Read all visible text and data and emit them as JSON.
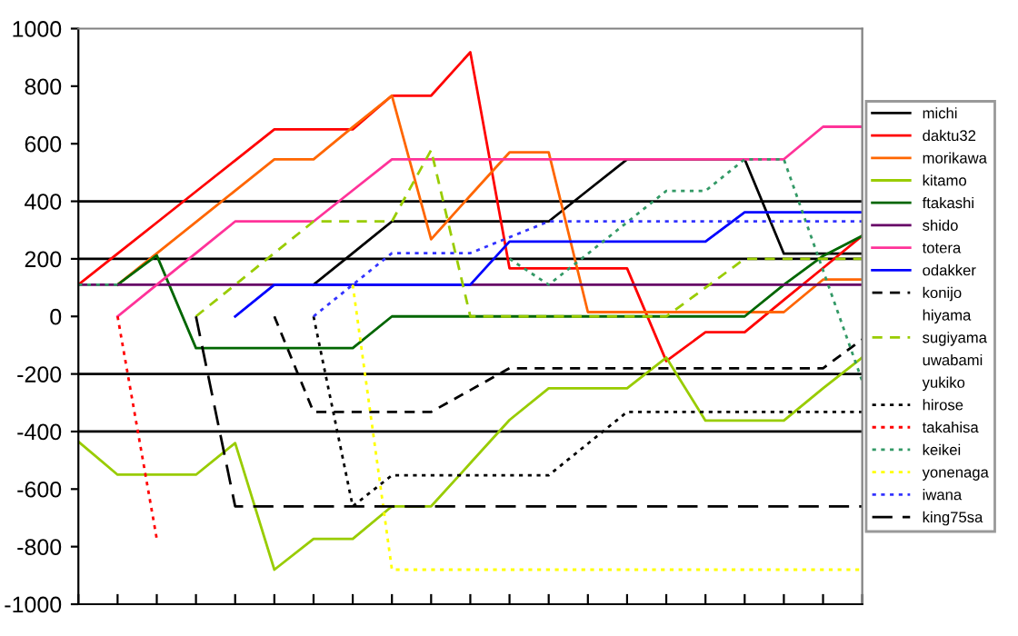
{
  "chart_data": {
    "type": "line",
    "categories": [
      null,
      null,
      null,
      null,
      null,
      null,
      null,
      null,
      null,
      null,
      null,
      null,
      null,
      null,
      null,
      null,
      null,
      null,
      null,
      null,
      null
    ],
    "ylim": [
      -1000,
      1000
    ],
    "yticks": [
      -1000,
      -800,
      -600,
      -400,
      -200,
      0,
      200,
      400,
      600,
      800,
      1000
    ],
    "grid": false,
    "legend": "right",
    "marker": "none",
    "ref_lines": [
      {
        "axis": "y",
        "value": 400,
        "color": "#000000"
      },
      {
        "axis": "y",
        "value": 200,
        "color": "#000000"
      },
      {
        "axis": "y",
        "value": -200,
        "color": "#000000"
      },
      {
        "axis": "y",
        "value": -400,
        "color": "#000000"
      }
    ],
    "series": [
      {
        "name": "michi",
        "color": "#000000",
        "line_style": "solid",
        "values": [
          null,
          null,
          null,
          null,
          null,
          null,
          110,
          220,
          330,
          330,
          330,
          330,
          330,
          438,
          546,
          546,
          546,
          546,
          218,
          218,
          218
        ]
      },
      {
        "name": "daktu32",
        "color": "#ff0000",
        "line_style": "solid",
        "values": [
          110,
          218,
          326,
          434,
          542,
          650,
          650,
          650,
          767,
          767,
          918,
          167,
          167,
          167,
          167,
          -155,
          -55,
          -55,
          57,
          168,
          280
        ]
      },
      {
        "name": "morikawa",
        "color": "#ff6600",
        "line_style": "solid",
        "values": [
          null,
          110,
          219,
          328,
          437,
          546,
          546,
          658,
          767,
          268,
          420,
          570,
          570,
          15,
          15,
          15,
          15,
          15,
          15,
          128,
          128
        ]
      },
      {
        "name": "kitamo",
        "color": "#99cc00",
        "line_style": "solid",
        "values": [
          -435,
          -550,
          -550,
          -550,
          -440,
          -880,
          -773,
          -773,
          -660,
          -660,
          -510,
          -360,
          -250,
          -250,
          -250,
          -143,
          -362,
          -362,
          -362,
          -250,
          -143
        ]
      },
      {
        "name": "ftakashi",
        "color": "#006600",
        "line_style": "solid",
        "values": [
          null,
          110,
          212,
          -110,
          -110,
          -110,
          -110,
          -110,
          0,
          0,
          0,
          0,
          0,
          0,
          0,
          0,
          0,
          0,
          110,
          210,
          280
        ]
      },
      {
        "name": "shido",
        "color": "#660066",
        "line_style": "solid",
        "values": [
          110,
          110,
          110,
          110,
          110,
          110,
          110,
          110,
          110,
          110,
          110,
          110,
          110,
          110,
          110,
          110,
          110,
          110,
          110,
          110,
          110
        ]
      },
      {
        "name": "totera",
        "color": "#ff3399",
        "line_style": "solid",
        "values": [
          null,
          0,
          110,
          220,
          330,
          330,
          330,
          438,
          546,
          546,
          546,
          546,
          546,
          546,
          546,
          546,
          546,
          546,
          546,
          659,
          659
        ]
      },
      {
        "name": "odakker",
        "color": "#0000ff",
        "line_style": "solid",
        "values": [
          null,
          null,
          null,
          null,
          0,
          110,
          110,
          110,
          110,
          110,
          110,
          260,
          260,
          260,
          260,
          260,
          260,
          362,
          362,
          362,
          362
        ]
      },
      {
        "name": "konijo",
        "color": "#000000",
        "line_style": "dashed",
        "values": [
          null,
          null,
          null,
          null,
          null,
          0,
          -332,
          -332,
          -332,
          -332,
          -256,
          -180,
          -180,
          -180,
          -180,
          -180,
          -180,
          -180,
          -180,
          -180,
          -80
        ]
      },
      {
        "name": "hiyama",
        "line_style": "solid",
        "values": [
          null,
          null,
          null,
          null,
          null,
          null,
          null,
          null,
          null,
          null,
          null,
          null,
          null,
          null,
          null,
          null,
          null,
          null,
          null,
          null,
          null
        ]
      },
      {
        "name": "sugiyama",
        "color": "#99cc00",
        "line_style": "dashed",
        "values": [
          null,
          null,
          null,
          0,
          110,
          220,
          330,
          330,
          330,
          578,
          0,
          0,
          0,
          0,
          0,
          0,
          100,
          200,
          200,
          200,
          200
        ]
      },
      {
        "name": "uwabami",
        "line_style": "solid",
        "values": [
          null,
          null,
          null,
          null,
          null,
          null,
          null,
          null,
          null,
          null,
          null,
          null,
          null,
          null,
          null,
          null,
          null,
          null,
          null,
          null,
          null
        ]
      },
      {
        "name": "yukiko",
        "line_style": "solid",
        "values": [
          null,
          null,
          null,
          null,
          null,
          null,
          null,
          null,
          null,
          null,
          null,
          null,
          null,
          null,
          null,
          null,
          null,
          null,
          null,
          null,
          null
        ]
      },
      {
        "name": "hirose",
        "color": "#000000",
        "line_style": "dotted",
        "values": [
          null,
          null,
          null,
          null,
          null,
          null,
          0,
          -660,
          -552,
          -552,
          -552,
          -552,
          -552,
          -442,
          -332,
          -332,
          -332,
          -332,
          -332,
          -332,
          -332
        ]
      },
      {
        "name": "takahisa",
        "color": "#ff0000",
        "line_style": "dotted",
        "values": [
          null,
          0,
          -773,
          null,
          null,
          null,
          null,
          null,
          null,
          null,
          null,
          null,
          null,
          null,
          null,
          null,
          null,
          null,
          null,
          null,
          null
        ]
      },
      {
        "name": "keikei",
        "color": "#339966",
        "line_style": "dotted",
        "values": [
          110,
          110,
          null,
          null,
          null,
          null,
          null,
          null,
          null,
          null,
          null,
          200,
          110,
          218,
          327,
          436,
          436,
          546,
          546,
          160,
          -225
        ]
      },
      {
        "name": "yonenaga",
        "color": "#ffff00",
        "line_style": "dotted",
        "values": [
          null,
          null,
          null,
          null,
          null,
          null,
          null,
          110,
          -880,
          -880,
          -880,
          -880,
          -880,
          -880,
          -880,
          -880,
          -880,
          -880,
          -880,
          -880,
          -880
        ]
      },
      {
        "name": "iwana",
        "color": "#3333ff",
        "line_style": "dotted",
        "values": [
          null,
          null,
          null,
          null,
          null,
          null,
          0,
          110,
          220,
          220,
          220,
          275,
          330,
          330,
          330,
          330,
          330,
          330,
          330,
          330,
          330
        ]
      },
      {
        "name": "king75sa",
        "color": "#000000",
        "line_style": "long_dash",
        "values": [
          null,
          null,
          null,
          0,
          -660,
          -660,
          -660,
          -660,
          -660,
          -660,
          -660,
          -660,
          -660,
          -660,
          -660,
          -660,
          -660,
          -660,
          -660,
          -660,
          -660
        ]
      }
    ]
  }
}
